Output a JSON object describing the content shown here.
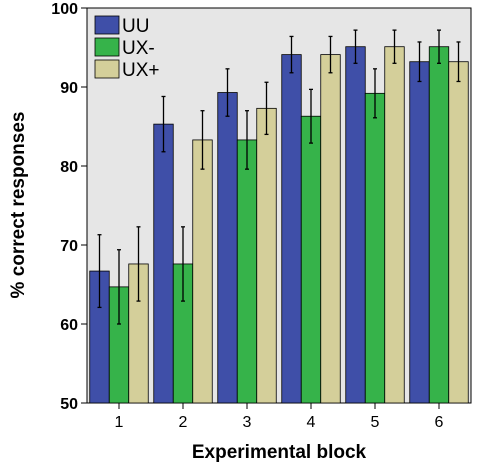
{
  "chart_data": {
    "type": "bar",
    "xlabel": "Experimental block",
    "ylabel": "% correct responses",
    "ylim": [
      50,
      100
    ],
    "yticks": [
      50,
      60,
      70,
      80,
      90,
      100
    ],
    "categories": [
      "1",
      "2",
      "3",
      "4",
      "5",
      "6"
    ],
    "series": [
      {
        "name": "UU",
        "color": "#3f4fa8",
        "values": [
          66.7,
          85.3,
          89.3,
          94.1,
          95.1,
          93.2
        ],
        "err": [
          4.6,
          3.5,
          3.0,
          2.3,
          2.1,
          2.5
        ]
      },
      {
        "name": "UX-",
        "color": "#36b34a",
        "values": [
          64.7,
          67.6,
          83.3,
          86.3,
          89.2,
          95.1
        ],
        "err": [
          4.7,
          4.7,
          3.7,
          3.4,
          3.1,
          2.1
        ]
      },
      {
        "name": "UX+",
        "color": "#d4cf9a",
        "values": [
          67.6,
          83.3,
          87.3,
          94.1,
          95.1,
          93.2
        ],
        "err": [
          4.7,
          3.7,
          3.3,
          2.3,
          2.1,
          2.5
        ]
      }
    ],
    "legend": "top-left",
    "grid": false,
    "error_bars": true
  }
}
